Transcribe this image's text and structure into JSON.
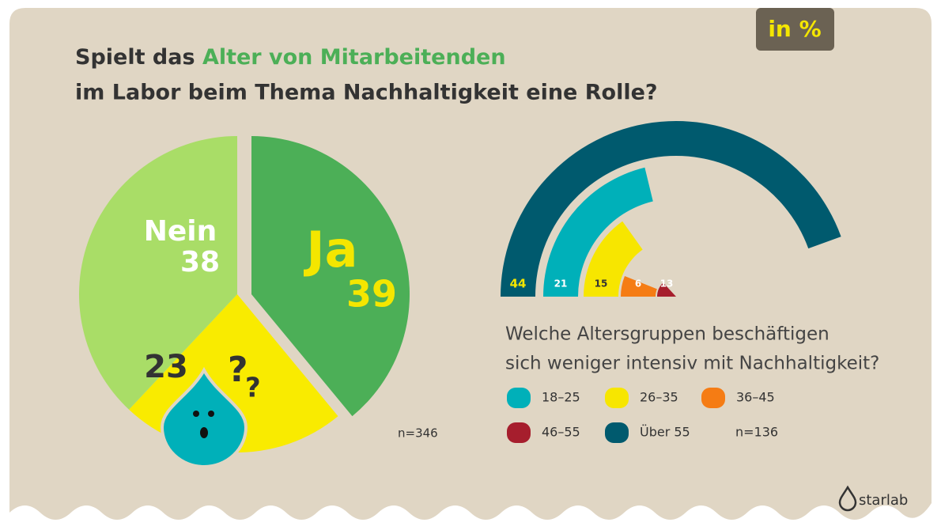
{
  "header": {
    "title_lead": "Spielt das",
    "title_highlight": "Alter von Mitarbeitenden",
    "title_line2": "im Labor beim Thema Nachhaltigkeit eine Rolle?",
    "badge": "in %"
  },
  "logo": "starlab",
  "chart_data": [
    {
      "type": "pie",
      "categories": [
        "Ja",
        null,
        "Nein"
      ],
      "values": [
        39,
        23,
        38
      ],
      "colors": [
        "#4caf57",
        "#f9eb00",
        "#a9dd67"
      ],
      "note": "n=346"
    },
    {
      "type": "radial_bar",
      "question": [
        "Welche Altersgruppen beschäftigen",
        "sich weniger intensiv mit Nachhaltigkeit?"
      ],
      "categories": [
        "18–25",
        "26–35",
        "36–45",
        "46–55",
        "Über 55"
      ],
      "values": [
        21,
        15,
        6,
        13,
        44
      ],
      "colors": [
        "#00b0b9",
        "#f7e600",
        "#f57c14",
        "#a61e2d",
        "#005a6e"
      ],
      "note": "n=136"
    }
  ]
}
